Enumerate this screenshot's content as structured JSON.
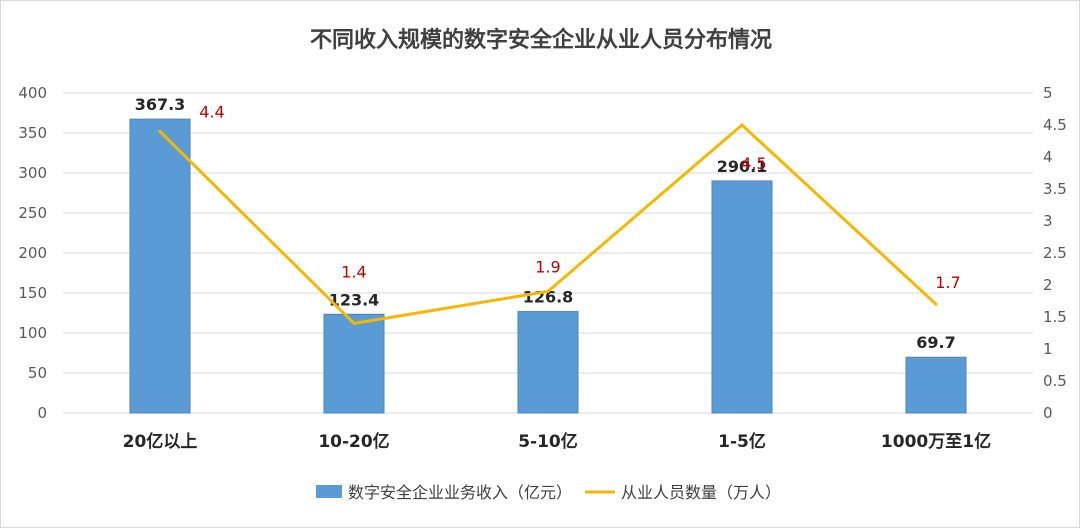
{
  "chart_data": {
    "type": "bar+line",
    "title": "不同收入规模的数字安全企业从业人员分布情况",
    "categories": [
      "20亿以上",
      "10-20亿",
      "5-10亿",
      "1-5亿",
      "1000万至1亿"
    ],
    "series": [
      {
        "name": "数字安全企业业务收入（亿元）",
        "type": "bar",
        "axis": "left",
        "color": "#5b9bd5",
        "values": [
          367.3,
          123.4,
          126.8,
          290.1,
          69.7
        ],
        "labels": [
          "367.3",
          "123.4",
          "126.8",
          "290.1",
          "69.7"
        ]
      },
      {
        "name": "从业人员数量（万人）",
        "type": "line",
        "axis": "right",
        "color": "#f5b800",
        "values": [
          4.4,
          1.4,
          1.9,
          4.5,
          1.7
        ],
        "labels": [
          "4.4",
          "1.4",
          "1.9",
          "4.5",
          "1.7"
        ]
      }
    ],
    "y_left": {
      "min": 0,
      "max": 400,
      "ticks": [
        "0",
        "50",
        "100",
        "150",
        "200",
        "250",
        "300",
        "350",
        "400"
      ]
    },
    "y_right": {
      "min": 0,
      "max": 5,
      "ticks": [
        "0",
        "0.5",
        "1",
        "1.5",
        "2",
        "2.5",
        "3",
        "3.5",
        "4",
        "4.5",
        "5"
      ]
    },
    "grid": true,
    "legend_position": "bottom",
    "label_color": "#c00000"
  }
}
